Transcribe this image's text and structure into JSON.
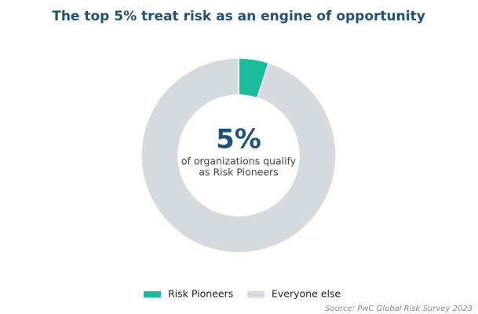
{
  "chart_data": {
    "type": "donut",
    "title": "The top 5% treat risk as an engine of opportunity",
    "categories": [
      "Risk Pioneers",
      "Everyone else"
    ],
    "values": [
      5,
      95
    ],
    "colors": [
      "#1abc9c",
      "#d5dadf"
    ],
    "center_value": "5%",
    "center_text": [
      "of organizations qualify",
      "as Risk Pioneers"
    ],
    "source": "Source: PwC Global Risk Survey 2023"
  }
}
